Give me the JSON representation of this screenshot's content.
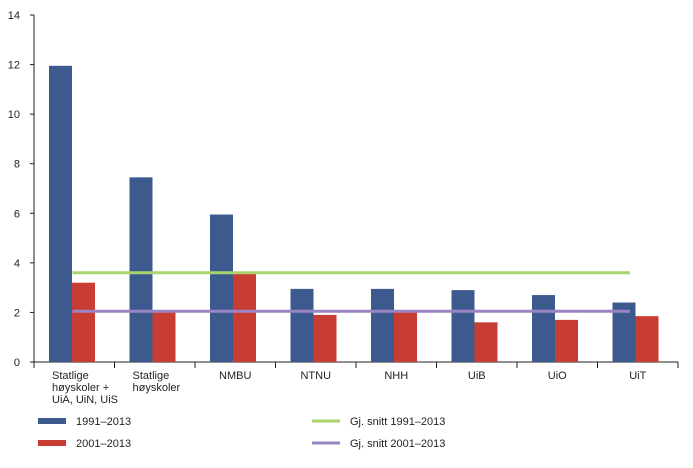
{
  "chart_data": {
    "type": "bar",
    "categories": [
      [
        "Statlige",
        "høyskoler +",
        "UiA, UiN, UiS"
      ],
      [
        "Statlige",
        "høyskoler"
      ],
      [
        "NMBU"
      ],
      [
        "NTNU"
      ],
      [
        "NHH"
      ],
      [
        "UiB"
      ],
      [
        "UiO"
      ],
      [
        "UiT"
      ]
    ],
    "series": [
      {
        "name": "1991–2013",
        "color": "#3c5a8e",
        "values": [
          11.95,
          7.45,
          5.95,
          2.95,
          2.95,
          2.9,
          2.7,
          2.4
        ]
      },
      {
        "name": "2001–2013",
        "color": "#c83d33",
        "values": [
          3.2,
          2.05,
          3.65,
          1.9,
          2.05,
          1.6,
          1.7,
          1.85
        ]
      }
    ],
    "reference_lines": [
      {
        "name": "Gj. snitt 1991–2013",
        "color": "#a9d36c",
        "value": 3.6
      },
      {
        "name": "Gj. snitt 2001–2013",
        "color": "#9b84c4",
        "value": 2.05
      }
    ],
    "ylim": [
      0,
      14
    ],
    "yticks": [
      "0",
      "2",
      "4",
      "6",
      "8",
      "10",
      "12",
      "14"
    ],
    "legend_position": "bottom",
    "grid": false
  }
}
